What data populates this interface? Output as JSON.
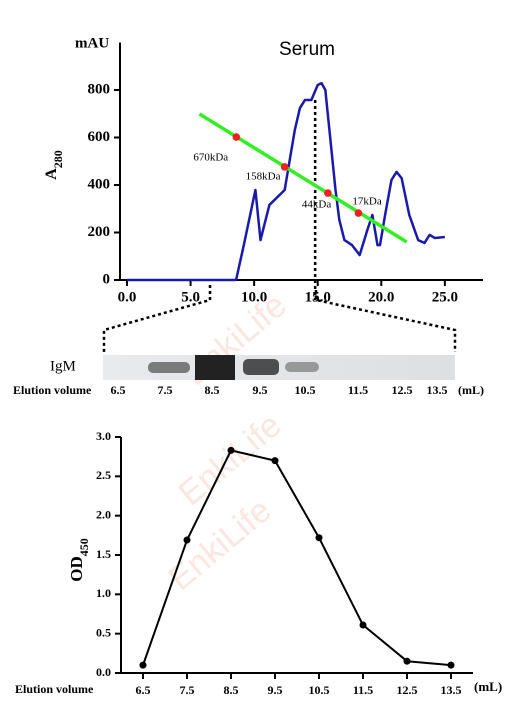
{
  "chart_data": [
    {
      "type": "line",
      "title": "Serum",
      "unit_label": "mAU",
      "ylabel": "A",
      "ylabel_sub": "280",
      "xlim": [
        0,
        28
      ],
      "ylim": [
        0,
        1000
      ],
      "xticks": [
        {
          "value": 0,
          "label": "0.0"
        },
        {
          "value": 5,
          "label": "5.0"
        },
        {
          "value": 10,
          "label": "10.0"
        },
        {
          "value": 15,
          "label": "15.0"
        },
        {
          "value": 20,
          "label": "20.0"
        },
        {
          "value": 25,
          "label": "25.0"
        }
      ],
      "yticks": [
        0,
        200,
        400,
        600,
        800
      ],
      "series": [
        {
          "color": "#1a1aaa",
          "x": [
            0,
            8.5,
            8.6,
            9.2,
            10.1,
            10.5,
            11.2,
            12.4,
            13.2,
            13.6,
            14.0,
            14.5,
            15.0,
            15.3,
            15.6,
            16.0,
            16.4,
            16.7,
            17.1,
            17.7,
            18.3,
            18.9,
            19.3,
            19.7,
            19.9,
            20.3,
            20.8,
            21.2,
            21.6,
            22.2,
            22.9,
            23.4,
            23.8,
            24.2,
            25.0
          ],
          "values": [
            0,
            0,
            5,
            150,
            379,
            168,
            316,
            379,
            632,
            724,
            758,
            758,
            821,
            829,
            800,
            590,
            379,
            253,
            168,
            147,
            105,
            210,
            274,
            147,
            147,
            274,
            421,
            455,
            429,
            274,
            168,
            156,
            190,
            177,
            181
          ]
        }
      ],
      "fit_line": {
        "color": "#33ee22",
        "x": [
          5.7,
          22.0
        ],
        "values": [
          699,
          160
        ]
      },
      "standards": {
        "color": "#ee2222",
        "labels": [
          "670kDa",
          "158kDa",
          "44kDa",
          "17kDa"
        ],
        "x": [
          8.6,
          12.4,
          15.8,
          18.2
        ],
        "values": [
          602,
          476,
          366,
          282
        ]
      },
      "vline": 14.8
    },
    {
      "type": "line",
      "ylabel": "OD",
      "ylabel_sub": "450",
      "xlabel": "Elution volume",
      "xunit": "(mL)",
      "xlim": [
        6,
        14
      ],
      "ylim": [
        0,
        3
      ],
      "xticks": [
        6.5,
        7.5,
        8.5,
        9.5,
        10.5,
        11.5,
        12.5,
        13.5
      ],
      "yticks": [
        {
          "value": 0,
          "label": "0.0"
        },
        {
          "value": 0.5,
          "label": "0.5"
        },
        {
          "value": 1,
          "label": "1.0"
        },
        {
          "value": 1.5,
          "label": "1.5"
        },
        {
          "value": 2,
          "label": "2.0"
        },
        {
          "value": 2.5,
          "label": "2.5"
        },
        {
          "value": 3,
          "label": "3.0"
        }
      ],
      "series": [
        {
          "color": "#000000",
          "markers": true,
          "x": [
            6.5,
            7.5,
            8.5,
            9.5,
            10.5,
            11.5,
            12.5,
            13.5
          ],
          "values": [
            0.1,
            1.69,
            2.83,
            2.7,
            1.72,
            0.61,
            0.15,
            0.1
          ]
        }
      ]
    }
  ],
  "gel": {
    "label": "IgM",
    "axis_label": "Elution volume",
    "lanes": [
      "6.5",
      "7.5",
      "8.5",
      "9.5",
      "10.5",
      "11.5",
      "12.5",
      "13.5"
    ],
    "unit": "(mL)"
  },
  "watermark": "EnkiLife"
}
